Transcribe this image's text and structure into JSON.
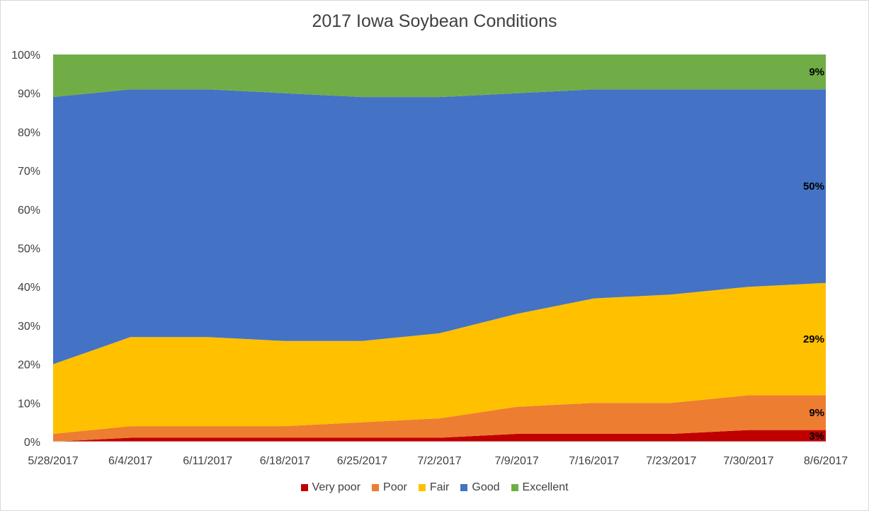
{
  "chart_data": {
    "type": "area",
    "stacked": true,
    "percent": true,
    "title": "2017 Iowa Soybean Conditions",
    "xlabel": "",
    "ylabel": "",
    "ylim": [
      0,
      100
    ],
    "y_ticks": [
      "0%",
      "10%",
      "20%",
      "30%",
      "40%",
      "50%",
      "60%",
      "70%",
      "80%",
      "90%",
      "100%"
    ],
    "categories": [
      "5/28/2017",
      "6/4/2017",
      "6/11/2017",
      "6/18/2017",
      "6/25/2017",
      "7/2/2017",
      "7/9/2017",
      "7/16/2017",
      "7/23/2017",
      "7/30/2017",
      "8/6/2017"
    ],
    "series": [
      {
        "name": "Very poor",
        "color": "#c00000",
        "values": [
          0,
          1,
          1,
          1,
          1,
          1,
          2,
          2,
          2,
          3,
          3
        ]
      },
      {
        "name": "Poor",
        "color": "#ed7d31",
        "values": [
          2,
          3,
          3,
          3,
          4,
          5,
          7,
          8,
          8,
          9,
          9
        ]
      },
      {
        "name": "Fair",
        "color": "#ffc000",
        "values": [
          18,
          23,
          23,
          22,
          21,
          22,
          24,
          27,
          28,
          28,
          29
        ]
      },
      {
        "name": "Good",
        "color": "#4472c4",
        "values": [
          69,
          64,
          64,
          64,
          63,
          61,
          57,
          54,
          53,
          51,
          50
        ]
      },
      {
        "name": "Excellent",
        "color": "#70ad47",
        "values": [
          11,
          9,
          9,
          10,
          11,
          11,
          10,
          9,
          9,
          9,
          9
        ]
      }
    ],
    "data_labels": [
      {
        "series": "Very poor",
        "category": "8/6/2017",
        "text": "3%"
      },
      {
        "series": "Poor",
        "category": "8/6/2017",
        "text": "9%"
      },
      {
        "series": "Fair",
        "category": "8/6/2017",
        "text": "29%"
      },
      {
        "series": "Good",
        "category": "8/6/2017",
        "text": "50%"
      },
      {
        "series": "Excellent",
        "category": "8/6/2017",
        "text": "9%"
      }
    ],
    "grid": false,
    "legend_position": "bottom"
  }
}
